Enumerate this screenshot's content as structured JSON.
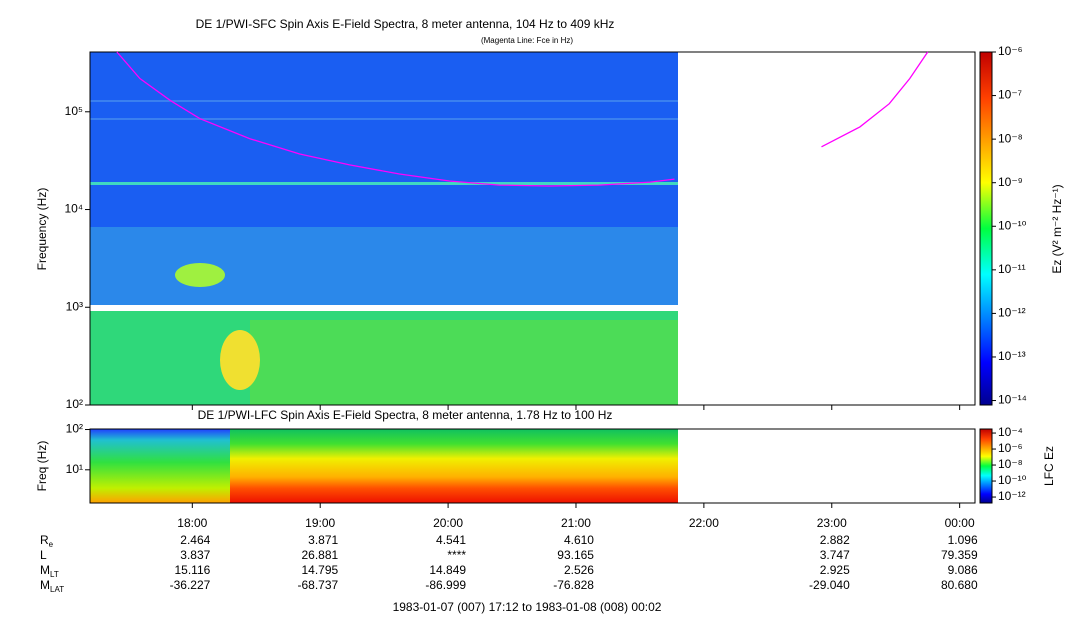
{
  "chart_data": [
    {
      "type": "spectrogram",
      "title": "DE 1/PWI-SFC  Spin Axis E-Field Spectra, 8 meter antenna, 104 Hz to 409 kHz",
      "subtitle": "(Magenta Line: Fce in Hz)",
      "y_label": "Frequency (Hz)",
      "log_y": true,
      "xlim": [
        17.2,
        24.12
      ],
      "ylim": [
        100,
        409000
      ],
      "yticks": [
        {
          "value": 100,
          "label": "10²"
        },
        {
          "value": 1000,
          "label": "10³"
        },
        {
          "value": 10000,
          "label": "10⁴"
        },
        {
          "value": 100000,
          "label": "10⁵"
        }
      ],
      "series": [
        {
          "color": "#ff00ff",
          "x": [
            17.41,
            17.59,
            17.83,
            18.06,
            18.45,
            18.84,
            19.23,
            19.62,
            20.01,
            20.4,
            20.79,
            21.18,
            21.58,
            21.77,
            null,
            22.92,
            23.22,
            23.45,
            23.61,
            23.75
          ],
          "values": [
            409000,
            219000,
            130000,
            85000,
            53000,
            37000,
            28600,
            23100,
            19600,
            17800,
            17400,
            17800,
            19100,
            20500,
            null,
            43800,
            70000,
            121000,
            219000,
            409000
          ]
        }
      ],
      "colorbar": {
        "label": "Ez (V² m⁻² Hz⁻¹)",
        "clim": [
          7.9e-15,
          1e-06
        ],
        "ticks": [
          {
            "value": 1e-06,
            "label": "10⁻⁶"
          },
          {
            "value": 1e-07,
            "label": "10⁻⁷"
          },
          {
            "value": 1e-08,
            "label": "10⁻⁸"
          },
          {
            "value": 1e-09,
            "label": "10⁻⁹"
          },
          {
            "value": 1e-10,
            "label": "10⁻¹⁰"
          },
          {
            "value": 1e-11,
            "label": "10⁻¹¹"
          },
          {
            "value": 1e-12,
            "label": "10⁻¹²"
          },
          {
            "value": 1e-13,
            "label": "10⁻¹³"
          },
          {
            "value": 1e-14,
            "label": "10⁻¹⁴"
          }
        ]
      }
    },
    {
      "type": "spectrogram",
      "title": "DE 1/PWI-LFC  Spin Axis E-Field Spectra, 8 meter antenna, 1.78 Hz to 100 Hz",
      "y_label": "Freq (Hz)",
      "log_y": true,
      "xlim": [
        17.2,
        24.12
      ],
      "ylim": [
        1.5,
        103
      ],
      "yticks": [
        {
          "value": 10,
          "label": "10¹"
        },
        {
          "value": 100,
          "label": "10²"
        }
      ],
      "xticks": [
        {
          "value": 18,
          "label": "18:00"
        },
        {
          "value": 19,
          "label": "19:00"
        },
        {
          "value": 20,
          "label": "20:00"
        },
        {
          "value": 21,
          "label": "21:00"
        },
        {
          "value": 22,
          "label": "22:00"
        },
        {
          "value": 23,
          "label": "23:00"
        },
        {
          "value": 24,
          "label": "00:00"
        }
      ],
      "colorbar": {
        "label": "LFC Ez",
        "clim": [
          1.8e-13,
          0.00032
        ],
        "ticks": [
          {
            "value": 0.0001,
            "label": "10⁻⁴"
          },
          {
            "value": 1e-06,
            "label": "10⁻⁶"
          },
          {
            "value": 1e-08,
            "label": "10⁻⁸"
          },
          {
            "value": 1e-10,
            "label": "10⁻¹⁰"
          },
          {
            "value": 1e-12,
            "label": "10⁻¹²"
          }
        ]
      }
    }
  ],
  "ephemeris": {
    "rows": [
      {
        "label": "R",
        "sub": "e",
        "values": [
          "2.464",
          "3.871",
          "4.541",
          "4.610",
          null,
          "2.882",
          "1.096"
        ]
      },
      {
        "label": "L",
        "values": [
          "3.837",
          "26.881",
          "****",
          "93.165",
          null,
          "3.747",
          "79.359"
        ]
      },
      {
        "label": "M",
        "sub": "LT",
        "values": [
          "15.116",
          "14.795",
          "14.849",
          "2.526",
          null,
          "2.925",
          "9.086"
        ]
      },
      {
        "label": "M",
        "sub": "LAT",
        "values": [
          "-36.227",
          "-68.737",
          "-86.999",
          "-76.828",
          null,
          "-29.040",
          "80.680"
        ]
      }
    ],
    "footer": "1983-01-07 (007) 17:12 to 1983-01-08 (008) 00:02"
  }
}
